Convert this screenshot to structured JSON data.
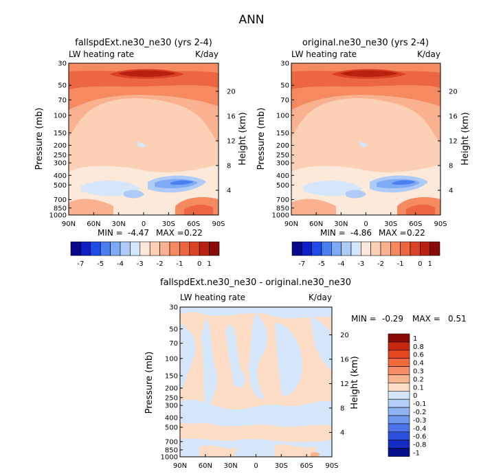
{
  "figure_title": "ANN",
  "chart_data": [
    {
      "type": "heatmap",
      "id": "p1",
      "title": "fallspdExt.ne30_ne30 (yrs 2-4)",
      "left_label": "LW heating rate",
      "right_label": "K/day",
      "ylabel": "Pressure (mb)",
      "ylabel_right": "Height (km)",
      "x_ticks": [
        "90N",
        "60N",
        "30N",
        "0",
        "30S",
        "60S",
        "90S"
      ],
      "p_ticks": [
        "30",
        "50",
        "70",
        "100",
        "150",
        "200",
        "250",
        "300",
        "400",
        "500",
        "700",
        "850",
        "1000"
      ],
      "p_values": [
        30,
        50,
        70,
        100,
        150,
        200,
        250,
        300,
        400,
        500,
        700,
        850,
        1000
      ],
      "km_ticks": [
        "20",
        "16",
        "12",
        "8",
        "4"
      ],
      "min_label": "MIN =",
      "min_value": "-4.47",
      "max_label": "MAX =",
      "max_value": "0.22",
      "levels": [
        "-7",
        "-5",
        "-4",
        "-3",
        "-2",
        "-1",
        "0",
        "1"
      ]
    },
    {
      "type": "heatmap",
      "id": "p2",
      "title": "original.ne30_ne30 (yrs 2-4)",
      "left_label": "LW heating rate",
      "right_label": "K/day",
      "ylabel": "Pressure (mb)",
      "ylabel_right": "Height (km)",
      "x_ticks": [
        "90N",
        "60N",
        "30N",
        "0",
        "30S",
        "60S",
        "90S"
      ],
      "p_ticks": [
        "30",
        "50",
        "70",
        "100",
        "150",
        "200",
        "250",
        "300",
        "400",
        "500",
        "700",
        "850",
        "1000"
      ],
      "p_values": [
        30,
        50,
        70,
        100,
        150,
        200,
        250,
        300,
        400,
        500,
        700,
        850,
        1000
      ],
      "km_ticks": [
        "20",
        "16",
        "12",
        "8",
        "4"
      ],
      "min_label": "MIN =",
      "min_value": "-4.86",
      "max_label": "MAX =",
      "max_value": "0.22",
      "levels": [
        "-7",
        "-5",
        "-4",
        "-3",
        "-2",
        "-1",
        "0",
        "1"
      ]
    },
    {
      "type": "heatmap",
      "id": "p3",
      "title": "fallspdExt.ne30_ne30 - original.ne30_ne30",
      "left_label": "LW heating rate",
      "right_label": "K/day",
      "ylabel": "Pressure (mb)",
      "ylabel_right": "Height (km)",
      "x_ticks": [
        "90N",
        "60N",
        "30N",
        "0",
        "30S",
        "60S",
        "90S"
      ],
      "p_ticks": [
        "30",
        "50",
        "70",
        "100",
        "150",
        "200",
        "250",
        "300",
        "400",
        "500",
        "700",
        "850",
        "1000"
      ],
      "p_values": [
        30,
        50,
        70,
        100,
        150,
        200,
        250,
        300,
        400,
        500,
        700,
        850,
        1000
      ],
      "km_ticks": [
        "20",
        "16",
        "12",
        "8",
        "4"
      ],
      "min_label": "MIN =",
      "min_value": "-0.29",
      "max_label": "MAX =",
      "max_value": "0.51",
      "levels": [
        "1",
        "0.8",
        "0.6",
        "0.4",
        "0.3",
        "0.2",
        "0.1",
        "0",
        "-0.1",
        "-0.2",
        "-0.3",
        "-0.4",
        "-0.6",
        "-0.8",
        "-1"
      ]
    }
  ],
  "colors": {
    "main_scale": [
      "#08088c",
      "#0c1fc4",
      "#1f4be8",
      "#4a7ff2",
      "#7eaaf5",
      "#aecbf7",
      "#d6e6fa",
      "#fde9d9",
      "#fcd0b4",
      "#f9b18f",
      "#f58a61",
      "#ec6642",
      "#da4226",
      "#b8210f",
      "#8a0a05"
    ],
    "diff_scale": [
      "#8a0a05",
      "#c8280e",
      "#e4461d",
      "#f06a3e",
      "#f58e66",
      "#f8b48f",
      "#fcdcc4",
      "#d6e6fa",
      "#b4cff7",
      "#8fb4f2",
      "#6e98ed",
      "#4a74e8",
      "#2c4fde",
      "#142cc4",
      "#060e8a"
    ]
  }
}
